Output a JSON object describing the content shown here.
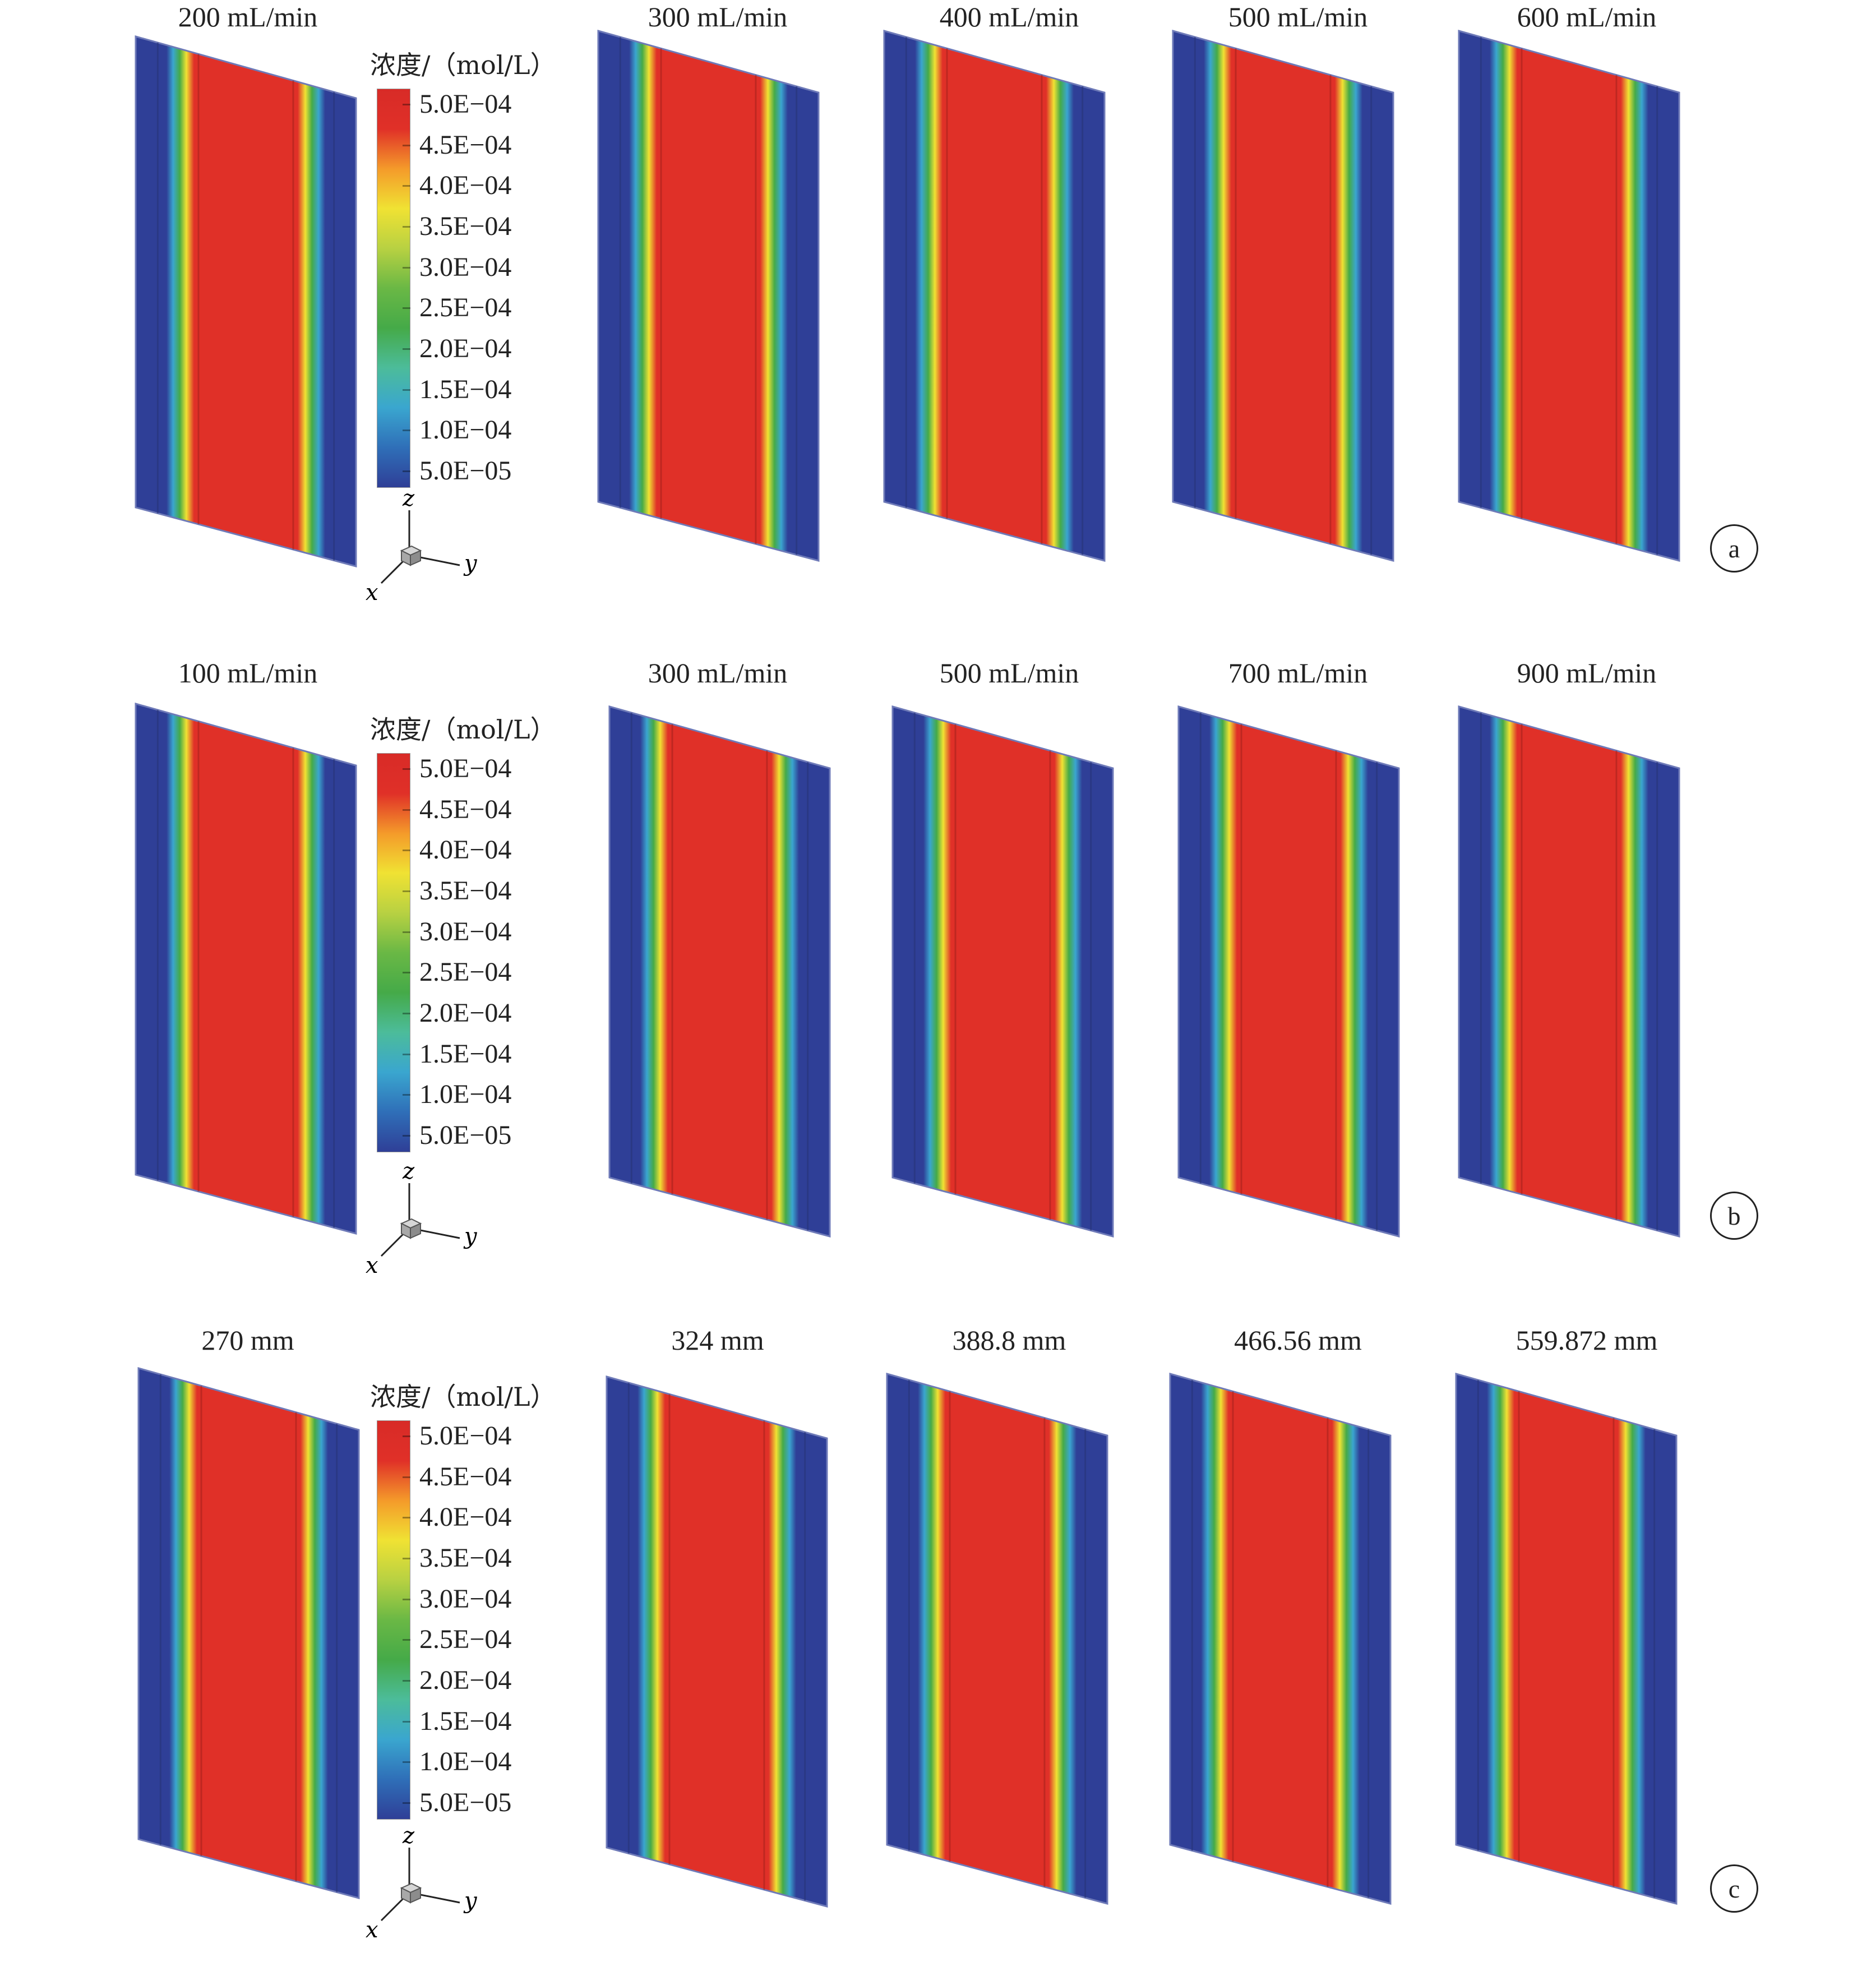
{
  "colorbar": {
    "title": "浓度/（mol/L）",
    "ticks": [
      "5.0E−04",
      "4.5E−04",
      "4.0E−04",
      "3.5E−04",
      "3.0E−04",
      "2.5E−04",
      "2.0E−04",
      "1.5E−04",
      "1.0E−04",
      "5.0E−05"
    ],
    "colors": [
      "#2f3f97",
      "#2f6fb8",
      "#3aa6cf",
      "#4cbc9a",
      "#45aa48",
      "#6ab845",
      "#b8d142",
      "#f0e233",
      "#f49a2a",
      "#e03028",
      "#d82b27"
    ]
  },
  "axes": {
    "z": "z",
    "y": "y",
    "x": "x"
  },
  "rows": [
    {
      "id": "a",
      "badge": "a",
      "titles": [
        "200 mL/min",
        "300 mL/min",
        "400 mL/min",
        "500 mL/min",
        "600 mL/min"
      ]
    },
    {
      "id": "b",
      "badge": "b",
      "titles": [
        "100 mL/min",
        "300 mL/min",
        "500 mL/min",
        "700 mL/min",
        "900 mL/min"
      ]
    },
    {
      "id": "c",
      "badge": "c",
      "titles": [
        "270 mm",
        "324 mm",
        "388.8 mm",
        "466.56 mm",
        "559.872 mm"
      ]
    }
  ]
}
